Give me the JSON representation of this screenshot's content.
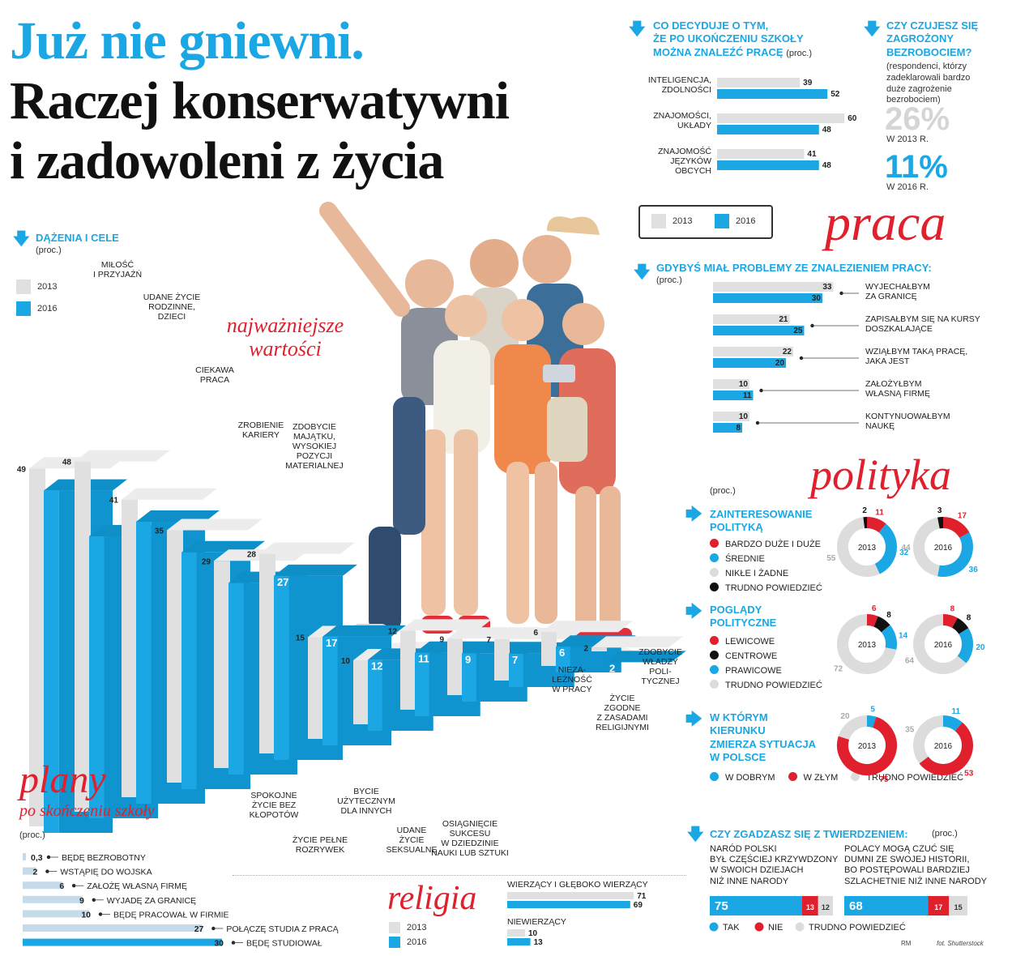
{
  "title": {
    "line1": "Już nie gniewni.",
    "line2": "Raczej konserwatywni",
    "line3": "i zadowoleni z życia"
  },
  "colors": {
    "blue": "#1aa7e3",
    "grey": "#e0e0e0",
    "red": "#e0202d",
    "black": "#111111",
    "lightgrey": "#dcdcdc"
  },
  "sections": {
    "praca": "praca",
    "polityka": "polityka",
    "religia": "religia",
    "plany": "plany",
    "plany_sub": "po skończeniu szkoły",
    "wartosci": "najważniejsze wartości"
  },
  "unit": "(proc.)",
  "legend": {
    "y2013": "2013",
    "y2016": "2016"
  },
  "credits": {
    "author": "RM",
    "photo": "fot. Shutterstock"
  },
  "chart_data": [
    {
      "id": "dazenia",
      "type": "bar",
      "title": "DĄŻENIA I CELE",
      "subtitle": "(proc.)",
      "categories": [
        "MIŁOŚĆ I PRZYJAŹŃ",
        "UDANE ŻYCIE RODZINNE, DZIECI",
        "CIEKAWA PRACA",
        "ZROBIENIE KARIERY",
        "ZDOBYCIE MAJĄTKU, WYSOKIEJ POZYCJI MATERIALNEJ",
        "SPOKOJNE ŻYCIE BEZ KŁOPOTÓW",
        "ŻYCIE PEŁNE ROZRYWEK",
        "BYCIE UŻYTECZNYM DLA INNYCH",
        "UDANE ŻYCIE SEKSUALNE",
        "OSIĄGNIĘCIE SUKCESU W DZIEDZINIE NAUKI LUB SZTUKI",
        "NIEZALEŻNOŚĆ W PRACY",
        "ŻYCIE ZGODNE Z ZASADAMI RELIGIJNYMI",
        "ZDOBYCIE WŁADZY POLITYCZNEJ"
      ],
      "label_lines": [
        [
          "MIŁOŚĆ",
          "I PRZYJAŹŃ"
        ],
        [
          "UDANE ŻYCIE",
          "RODZINNE,",
          "DZIECI"
        ],
        [
          "CIEKAWA",
          "PRACA"
        ],
        [
          "ZROBIENIE",
          "KARIERY"
        ],
        [
          "ZDOBYCIE",
          "MAJĄTKU,",
          "WYSOKIEJ",
          "POZYCJI",
          "MATERIALNEJ"
        ],
        [
          "SPOKOJNE",
          "ŻYCIE BEZ",
          "KŁOPOTÓW"
        ],
        [
          "ŻYCIE PEŁNE",
          "ROZRYWEK"
        ],
        [
          "BYCIE",
          "UŻYTECZNYM",
          "DLA INNYCH"
        ],
        [
          "UDANE",
          "ŻYCIE",
          "SEKSUALNE"
        ],
        [
          "OSIĄGNIĘCIE",
          "SUKCESU",
          "W DZIEDZINIE",
          "NAUKI LUB SZTUKI"
        ],
        [
          "NIEZA-",
          "LEŻNOŚĆ",
          "W PRACY"
        ],
        [
          "ŻYCIE",
          "ZGODNE",
          "Z ZASADAMI",
          "RELIGIJNYMI"
        ],
        [
          "ZDOBYCIE",
          "WŁADZY",
          "POLI-",
          "TYCZNEJ"
        ]
      ],
      "series": [
        {
          "name": "2013",
          "values": [
            49,
            48,
            41,
            35,
            29,
            28,
            15,
            10,
            12,
            9,
            7,
            6,
            2
          ]
        },
        {
          "name": "2016",
          "values": [
            48,
            40,
            40,
            34,
            28,
            27,
            17,
            12,
            11,
            9,
            7,
            6,
            2
          ]
        }
      ]
    },
    {
      "id": "decyduje",
      "type": "bar",
      "title": "CO DECYDUJE O TYM, ŻE PO UKOŃCZENIU SZKOŁY MOŻNA ZNALEŹĆ PRACĘ",
      "title_lines": [
        "CO DECYDUJE O TYM,",
        "ŻE PO UKOŃCZENIU SZKOŁY",
        "MOŻNA ZNALEŹĆ PRACĘ"
      ],
      "subtitle": "(proc.)",
      "categories": [
        "INTELIGENCJA, ZDOLNOŚCI",
        "ZNAJOMOŚCI, UKŁADY",
        "ZNAJOMOŚĆ JĘZYKÓW OBCYCH"
      ],
      "label_lines": [
        [
          "INTELIGENCJA,",
          "ZDOLNOŚCI"
        ],
        [
          "ZNAJOMOŚCI,",
          "UKŁADY"
        ],
        [
          "ZNAJOMOŚĆ",
          "JĘZYKÓW",
          "OBCYCH"
        ]
      ],
      "series": [
        {
          "name": "2013",
          "values": [
            39,
            60,
            41
          ]
        },
        {
          "name": "2016",
          "values": [
            52,
            48,
            48
          ]
        }
      ]
    },
    {
      "id": "bezrobocie",
      "type": "table",
      "title": "CZY CZUJESZ SIĘ ZAGROŻONY BEZROBOCIEM?",
      "title_lines": [
        "CZY CZUJESZ SIĘ",
        "ZAGROŻONY",
        "BEZROBOCIEM?"
      ],
      "note_lines": [
        "(respondenci, którzy",
        "zadeklarowali bardzo",
        "duże zagrożenie",
        "bezrobociem)"
      ],
      "values": [
        {
          "value": "26%",
          "label": "W 2013 R."
        },
        {
          "value": "11%",
          "label": "W 2016 R."
        }
      ]
    },
    {
      "id": "problemy",
      "type": "bar",
      "title": "GDYBYŚ MIAŁ PROBLEMY ZE ZNALEZIENIEM PRACY:",
      "subtitle": "(proc.)",
      "categories": [
        "WYJECHAŁBYM ZA GRANICĘ",
        "ZAPISAŁBYM SIĘ NA KURSY DOSZKALAJĄCE",
        "WZIĄŁBYM TAKĄ PRACĘ, JAKA JEST",
        "ZAŁOŻYŁBYM WŁASNĄ FIRMĘ",
        "KONTYNUOWAŁBYM NAUKĘ"
      ],
      "label_lines": [
        [
          "WYJECHAŁBYM",
          "ZA GRANICĘ"
        ],
        [
          "ZAPISAŁBYM SIĘ NA KURSY",
          "DOSZKALAJĄCE"
        ],
        [
          "WZIĄŁBYM TAKĄ PRACĘ,",
          "JAKA JEST"
        ],
        [
          "ZAŁOŻYŁBYM",
          "WŁASNĄ FIRMĘ"
        ],
        [
          "KONTYNUOWAŁBYM",
          "NAUKĘ"
        ]
      ],
      "series": [
        {
          "name": "2013",
          "values": [
            33,
            21,
            22,
            10,
            10
          ]
        },
        {
          "name": "2016",
          "values": [
            30,
            25,
            20,
            11,
            8
          ]
        }
      ]
    },
    {
      "id": "zainteresowanie",
      "type": "pie",
      "title": "ZAINTERESOWANIE POLITYKĄ",
      "title_lines": [
        "ZAINTERESOWANIE",
        "POLITYKĄ"
      ],
      "legend": [
        "BARDZO DUŻE I DUŻE",
        "ŚREDNIE",
        "NIKŁE I ŻADNE",
        "TRUDNO POWIEDZIEĆ"
      ],
      "series": [
        {
          "name": "2013",
          "values": [
            11,
            32,
            55,
            2
          ]
        },
        {
          "name": "2016",
          "values": [
            17,
            36,
            44,
            3
          ]
        }
      ]
    },
    {
      "id": "poglady",
      "type": "pie",
      "title": "POGLĄDY POLITYCZNE",
      "title_lines": [
        "POGLĄDY",
        "POLITYCZNE"
      ],
      "legend": [
        "LEWICOWE",
        "CENTROWE",
        "PRAWICOWE",
        "TRUDNO POWIEDZIEĆ"
      ],
      "series": [
        {
          "name": "2013",
          "values": [
            6,
            8,
            14,
            72
          ]
        },
        {
          "name": "2016",
          "values": [
            8,
            8,
            20,
            64
          ]
        }
      ]
    },
    {
      "id": "kierunek",
      "type": "pie",
      "title": "W KTÓRYM KIERUNKU ZMIERZA SYTUACJA W POLSCE",
      "title_lines": [
        "W KTÓRYM",
        "KIERUNKU",
        "ZMIERZA SYTUACJA",
        "W POLSCE"
      ],
      "legend": [
        "W DOBRYM",
        "W ZŁYM",
        "TRUDNO POWIEDZIEĆ"
      ],
      "series": [
        {
          "name": "2013",
          "values": [
            5,
            75,
            20
          ]
        },
        {
          "name": "2016",
          "values": [
            11,
            53,
            35
          ]
        }
      ]
    },
    {
      "id": "twierdzenia",
      "type": "bar",
      "title": "CZY ZGADZASZ SIĘ Z TWIERDZENIEM:",
      "subtitle": "(proc.)",
      "categories": [
        "NARÓD POLSKI BYŁ CZĘŚCIEJ KRZYWDZONY W SWOICH DZIEJACH NIŻ INNE NARODY",
        "POLACY MOGĄ CZUĆ SIĘ DUMNI ZE SWOJEJ HISTORII, BO POSTĘPOWALI BARDZIEJ SZLACHETNIE NIŻ INNE NARODY"
      ],
      "label_lines": [
        [
          "NARÓD POLSKI",
          "BYŁ CZĘŚCIEJ KRZYWDZONY",
          "W SWOICH DZIEJACH",
          "NIŻ INNE NARODY"
        ],
        [
          "POLACY MOGĄ CZUĆ SIĘ",
          "DUMNI ZE SWOJEJ HISTORII,",
          "BO POSTĘPOWALI BARDZIEJ",
          "SZLACHETNIE NIŻ INNE NARODY"
        ]
      ],
      "legend": [
        "TAK",
        "NIE",
        "TRUDNO POWIEDZIEĆ"
      ],
      "series": [
        {
          "name": "TAK",
          "values": [
            75,
            68
          ]
        },
        {
          "name": "NIE",
          "values": [
            13,
            17
          ]
        },
        {
          "name": "TRUDNO POWIEDZIEĆ",
          "values": [
            12,
            15
          ]
        }
      ]
    },
    {
      "id": "plany",
      "type": "bar",
      "title": "plany po skończeniu szkoły",
      "subtitle": "(proc.)",
      "categories": [
        "BĘDĘ BEZROBOTNY",
        "WSTĄPIĘ DO WOJSKA",
        "ZAŁOŻĘ WŁASNĄ FIRMĘ",
        "WYJADĘ ZA GRANICĘ",
        "BĘDĘ PRACOWAŁ W FIRMIE",
        "POŁĄCZĘ STUDIA Z PRACĄ",
        "BĘDĘ STUDIOWAŁ"
      ],
      "values": [
        0.3,
        2,
        6,
        9,
        10,
        27,
        30
      ],
      "value_labels": [
        "0,3",
        "2",
        "6",
        "9",
        "10",
        "27",
        "30"
      ]
    },
    {
      "id": "religia",
      "type": "bar",
      "title": "religia",
      "categories": [
        "WIERZĄCY I GŁĘBOKO WIERZĄCY",
        "NIEWIERZĄCY"
      ],
      "series": [
        {
          "name": "2013",
          "values": [
            71,
            10
          ]
        },
        {
          "name": "2016",
          "values": [
            69,
            13
          ]
        }
      ]
    }
  ]
}
